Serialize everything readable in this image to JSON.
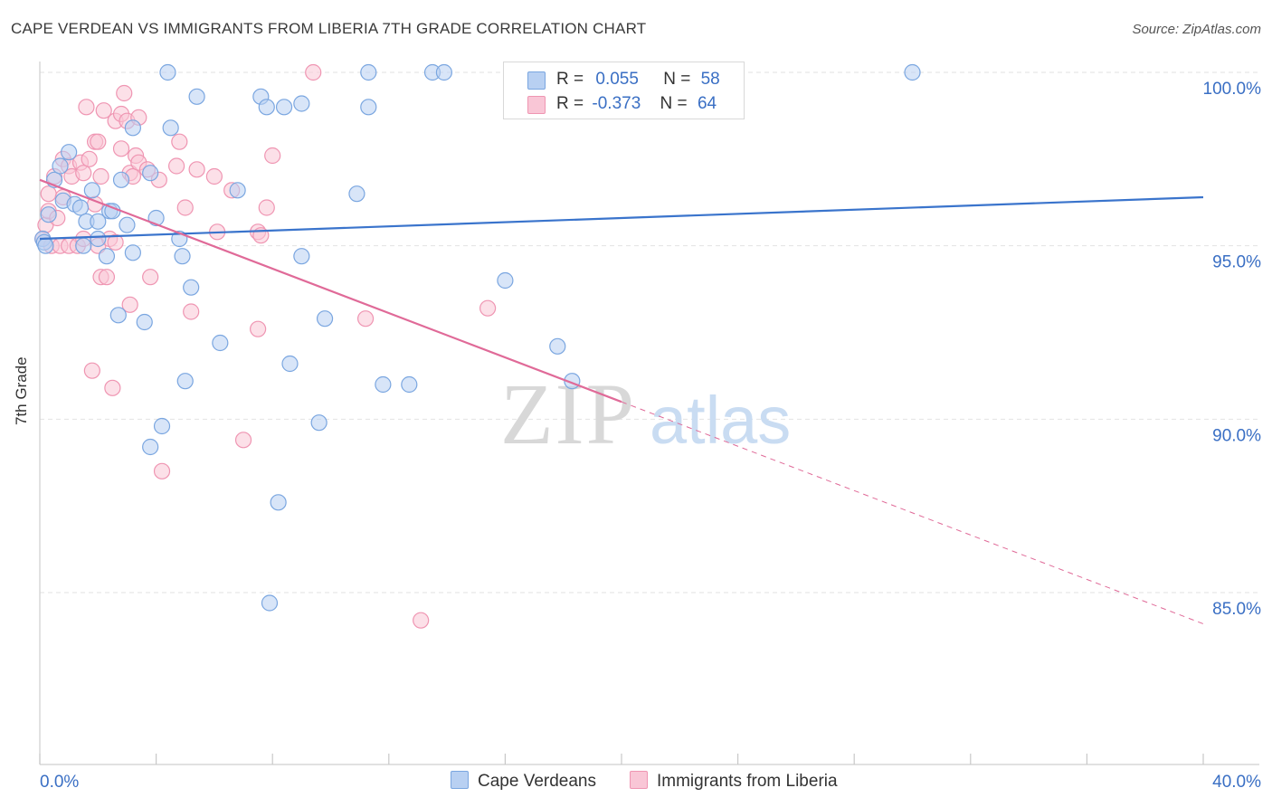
{
  "title": "CAPE VERDEAN VS IMMIGRANTS FROM LIBERIA 7TH GRADE CORRELATION CHART",
  "source": "Source: ZipAtlas.com",
  "watermark": {
    "zip": "ZIP",
    "atlas": "atlas"
  },
  "colors": {
    "blue_fill": "#b8d0f2",
    "blue_stroke": "#7aa6e0",
    "blue_line": "#3a74cc",
    "pink_fill": "#f9c6d6",
    "pink_stroke": "#ef95b2",
    "pink_line": "#e06a98",
    "axis_label": "#3a6fc4",
    "grid": "#e2e2e2"
  },
  "legend": {
    "rows": [
      {
        "r_label": "R =",
        "r_value": "0.055",
        "n_label": "N =",
        "n_value": "58"
      },
      {
        "r_label": "R =",
        "r_value": "-0.373",
        "n_label": "N =",
        "n_value": "64"
      }
    ]
  },
  "bottom_legend": {
    "series1": "Cape Verdeans",
    "series2": "Immigrants from Liberia"
  },
  "chart_data": {
    "type": "scatter",
    "title": "CAPE VERDEAN VS IMMIGRANTS FROM LIBERIA 7TH GRADE CORRELATION CHART",
    "xlabel": "",
    "ylabel": "7th Grade",
    "xlim": [
      0,
      40
    ],
    "ylim": [
      80.6,
      100.7
    ],
    "x_tick_labels": [
      {
        "value": 0,
        "label": "0.0%"
      },
      {
        "value": 40,
        "label": "40.0%"
      }
    ],
    "y_tick_labels": [
      {
        "value": 100,
        "label": "100.0%"
      },
      {
        "value": 95,
        "label": "95.0%"
      },
      {
        "value": 90,
        "label": "90.0%"
      },
      {
        "value": 85,
        "label": "85.0%"
      }
    ],
    "grid": true,
    "legend_position": "top-center",
    "series": [
      {
        "name": "Cape Verdeans",
        "r": 0.055,
        "n": 58,
        "trend": {
          "x0": 0,
          "y0": 95.2,
          "x1": 40,
          "y1": 96.4
        },
        "points": [
          [
            0.1,
            95.2
          ],
          [
            0.15,
            95.1
          ],
          [
            0.2,
            95.0
          ],
          [
            0.3,
            95.9
          ],
          [
            0.5,
            96.9
          ],
          [
            0.7,
            97.3
          ],
          [
            0.8,
            96.3
          ],
          [
            1.0,
            97.7
          ],
          [
            1.2,
            96.2
          ],
          [
            1.4,
            96.1
          ],
          [
            1.5,
            95.0
          ],
          [
            1.6,
            95.7
          ],
          [
            1.8,
            96.6
          ],
          [
            2.0,
            95.2
          ],
          [
            2.0,
            95.7
          ],
          [
            2.3,
            94.7
          ],
          [
            2.4,
            96.0
          ],
          [
            2.5,
            96.0
          ],
          [
            2.7,
            93.0
          ],
          [
            2.8,
            96.9
          ],
          [
            3.0,
            95.6
          ],
          [
            3.2,
            94.8
          ],
          [
            3.2,
            98.4
          ],
          [
            3.6,
            92.8
          ],
          [
            3.8,
            89.2
          ],
          [
            3.8,
            97.1
          ],
          [
            4.0,
            95.8
          ],
          [
            4.2,
            89.8
          ],
          [
            4.4,
            100.0
          ],
          [
            4.5,
            98.4
          ],
          [
            4.8,
            95.2
          ],
          [
            4.9,
            94.7
          ],
          [
            5.0,
            91.1
          ],
          [
            5.2,
            93.8
          ],
          [
            5.4,
            99.3
          ],
          [
            6.2,
            92.2
          ],
          [
            6.8,
            96.6
          ],
          [
            7.6,
            99.3
          ],
          [
            7.8,
            99.0
          ],
          [
            7.9,
            84.7
          ],
          [
            8.2,
            87.6
          ],
          [
            8.4,
            99.0
          ],
          [
            8.6,
            91.6
          ],
          [
            9.0,
            99.1
          ],
          [
            9.0,
            94.7
          ],
          [
            9.6,
            89.9
          ],
          [
            9.8,
            92.9
          ],
          [
            10.9,
            96.5
          ],
          [
            11.3,
            99.0
          ],
          [
            11.3,
            100.0
          ],
          [
            11.8,
            91.0
          ],
          [
            12.7,
            91.0
          ],
          [
            13.5,
            100.0
          ],
          [
            13.9,
            100.0
          ],
          [
            16.0,
            94.0
          ],
          [
            17.8,
            92.1
          ],
          [
            18.3,
            91.1
          ],
          [
            30.0,
            100.0
          ]
        ]
      },
      {
        "name": "Immigrants from Liberia",
        "r": -0.373,
        "n": 64,
        "trend": {
          "x0": 0,
          "y0": 96.9,
          "x1": 20,
          "y1": 90.5,
          "dash_x1": 40,
          "dash_y1": 84.1
        },
        "points": [
          [
            0.1,
            95.2
          ],
          [
            0.2,
            95.6
          ],
          [
            0.3,
            96.0
          ],
          [
            0.3,
            96.5
          ],
          [
            0.4,
            95.0
          ],
          [
            0.5,
            97.0
          ],
          [
            0.6,
            95.8
          ],
          [
            0.7,
            95.0
          ],
          [
            0.8,
            96.4
          ],
          [
            0.8,
            97.5
          ],
          [
            1.0,
            97.3
          ],
          [
            1.0,
            95.0
          ],
          [
            1.1,
            97.0
          ],
          [
            1.3,
            95.0
          ],
          [
            1.4,
            97.4
          ],
          [
            1.5,
            97.1
          ],
          [
            1.5,
            95.2
          ],
          [
            1.6,
            99.0
          ],
          [
            1.7,
            97.5
          ],
          [
            1.8,
            91.4
          ],
          [
            1.9,
            96.2
          ],
          [
            1.9,
            98.0
          ],
          [
            2.0,
            95.0
          ],
          [
            2.0,
            98.0
          ],
          [
            2.1,
            97.0
          ],
          [
            2.1,
            94.1
          ],
          [
            2.2,
            98.9
          ],
          [
            2.3,
            94.1
          ],
          [
            2.4,
            95.2
          ],
          [
            2.5,
            90.9
          ],
          [
            2.6,
            95.1
          ],
          [
            2.6,
            98.6
          ],
          [
            2.8,
            97.8
          ],
          [
            2.8,
            98.8
          ],
          [
            2.9,
            99.4
          ],
          [
            3.0,
            98.6
          ],
          [
            3.1,
            97.1
          ],
          [
            3.1,
            93.3
          ],
          [
            3.2,
            97.0
          ],
          [
            3.3,
            97.6
          ],
          [
            3.4,
            98.7
          ],
          [
            3.4,
            97.4
          ],
          [
            3.7,
            97.2
          ],
          [
            3.8,
            94.1
          ],
          [
            4.1,
            96.9
          ],
          [
            4.2,
            88.5
          ],
          [
            4.7,
            97.3
          ],
          [
            4.8,
            98.0
          ],
          [
            5.0,
            96.1
          ],
          [
            5.2,
            93.1
          ],
          [
            5.4,
            97.2
          ],
          [
            6.1,
            95.4
          ],
          [
            6.6,
            96.6
          ],
          [
            7.0,
            89.4
          ],
          [
            7.5,
            95.4
          ],
          [
            7.5,
            92.6
          ],
          [
            7.8,
            96.1
          ],
          [
            8.0,
            97.6
          ],
          [
            9.4,
            100.0
          ],
          [
            11.2,
            92.9
          ],
          [
            13.1,
            84.2
          ],
          [
            15.4,
            93.2
          ],
          [
            7.6,
            95.3
          ],
          [
            6.0,
            97.0
          ]
        ]
      }
    ]
  }
}
